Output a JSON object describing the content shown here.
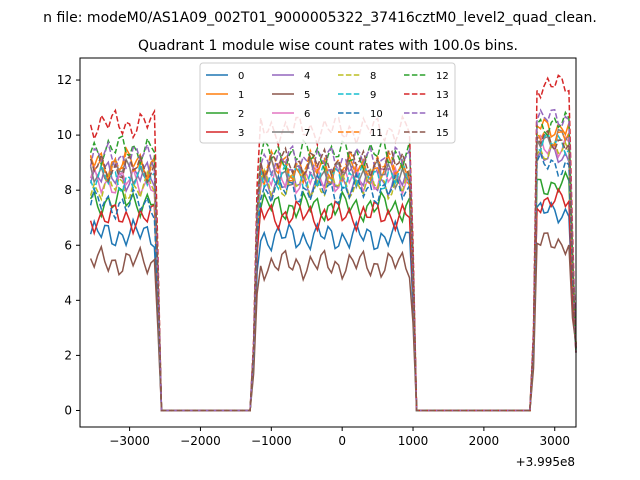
{
  "chart_data": {
    "type": "line",
    "suptitle": "n file: modeM0/AS1A09_002T01_9000005322_37416cztM0_level2_quad_clean.",
    "title": "Quadrant 1 module wise count rates with 100.0s bins.",
    "xlabel": "",
    "ylabel": "",
    "x_offset_label": "+3.995e8",
    "xlim": [
      -3700,
      3300
    ],
    "ylim": [
      -0.6,
      12.8
    ],
    "xticks": [
      -3000,
      -2000,
      -1000,
      0,
      1000,
      2000,
      3000
    ],
    "xtick_labels": [
      "−3000",
      "−2000",
      "−1000",
      "0",
      "1000",
      "2000",
      "3000"
    ],
    "yticks": [
      0,
      2,
      4,
      6,
      8,
      10,
      12
    ],
    "ytick_labels": [
      "0",
      "2",
      "4",
      "6",
      "8",
      "10",
      "12"
    ],
    "grid": false,
    "legend": {
      "placement": "top-center",
      "columns": 4
    },
    "x": [
      -3550,
      -3500,
      -3450,
      -3400,
      -3350,
      -3300,
      -3250,
      -3200,
      -3150,
      -3100,
      -3050,
      -3000,
      -2950,
      -2900,
      -2850,
      -2800,
      -2750,
      -2700,
      -2650,
      -2600,
      -2550,
      -2500,
      -2450,
      -2400,
      -2350,
      -2300,
      -2250,
      -2200,
      -2150,
      -2100,
      -2050,
      -2000,
      -1950,
      -1900,
      -1850,
      -1800,
      -1750,
      -1700,
      -1650,
      -1600,
      -1550,
      -1500,
      -1450,
      -1400,
      -1350,
      -1300,
      -1250,
      -1200,
      -1150,
      -1100,
      -1050,
      -1000,
      -950,
      -900,
      -850,
      -800,
      -750,
      -700,
      -650,
      -600,
      -550,
      -500,
      -450,
      -400,
      -350,
      -300,
      -250,
      -200,
      -150,
      -100,
      -50,
      0,
      50,
      100,
      150,
      200,
      250,
      300,
      350,
      400,
      450,
      500,
      550,
      600,
      650,
      700,
      750,
      800,
      850,
      900,
      950,
      1000,
      1050,
      1100,
      1150,
      1200,
      1250,
      1300,
      1350,
      1400,
      1450,
      1500,
      1550,
      1600,
      1650,
      1700,
      1750,
      1800,
      1850,
      1900,
      1950,
      2000,
      2050,
      2100,
      2150,
      2200,
      2250,
      2300,
      2350,
      2400,
      2450,
      2500,
      2550,
      2600,
      2650,
      2700,
      2750,
      2800,
      2850,
      2900,
      2950,
      3000,
      3050,
      3100,
      3150,
      3200,
      3250,
      3300
    ],
    "segments": {
      "on1_start": -3550,
      "on1_end": -2600,
      "zero_start": -2550,
      "on2_start": -1200,
      "on2_end": 950,
      "zero2_start": 1050,
      "on3_start": 2750,
      "on3_end": 3300
    },
    "series": [
      {
        "name": "0",
        "color": "#1f77b4",
        "dash": false,
        "level": 6.4,
        "level2": 6.3,
        "level3": 7.2
      },
      {
        "name": "1",
        "color": "#ff7f0e",
        "dash": false,
        "level": 9.0,
        "level2": 8.7,
        "level3": 10.3
      },
      {
        "name": "2",
        "color": "#2ca02c",
        "dash": false,
        "level": 7.6,
        "level2": 7.4,
        "level3": 8.2
      },
      {
        "name": "3",
        "color": "#d62728",
        "dash": false,
        "level": 7.0,
        "level2": 7.1,
        "level3": 7.6
      },
      {
        "name": "4",
        "color": "#9467bd",
        "dash": false,
        "level": 8.5,
        "level2": 8.3,
        "level3": 9.2
      },
      {
        "name": "5",
        "color": "#8c564b",
        "dash": false,
        "level": 5.4,
        "level2": 5.3,
        "level3": 6.1
      },
      {
        "name": "6",
        "color": "#e377c2",
        "dash": false,
        "level": 8.3,
        "level2": 8.4,
        "level3": 9.6
      },
      {
        "name": "7",
        "color": "#7f7f7f",
        "dash": false,
        "level": 8.7,
        "level2": 8.6,
        "level3": 9.9
      },
      {
        "name": "8",
        "color": "#bcbd22",
        "dash": true,
        "level": 8.1,
        "level2": 8.2,
        "level3": 9.4
      },
      {
        "name": "9",
        "color": "#17becf",
        "dash": true,
        "level": 8.4,
        "level2": 8.5,
        "level3": 9.7
      },
      {
        "name": "10",
        "color": "#1f77b4",
        "dash": true,
        "level": 7.5,
        "level2": 8.0,
        "level3": 8.9
      },
      {
        "name": "11",
        "color": "#ff7f0e",
        "dash": true,
        "level": 8.9,
        "level2": 8.9,
        "level3": 10.0
      },
      {
        "name": "12",
        "color": "#2ca02c",
        "dash": true,
        "level": 9.5,
        "level2": 9.3,
        "level3": 10.4
      },
      {
        "name": "13",
        "color": "#d62728",
        "dash": true,
        "level": 10.4,
        "level2": 10.2,
        "level3": 11.8
      },
      {
        "name": "14",
        "color": "#9467bd",
        "dash": true,
        "level": 9.2,
        "level2": 9.1,
        "level3": 10.6
      },
      {
        "name": "15",
        "color": "#8c564b",
        "dash": true,
        "level": 8.8,
        "level2": 9.0,
        "level3": 9.8
      }
    ]
  }
}
